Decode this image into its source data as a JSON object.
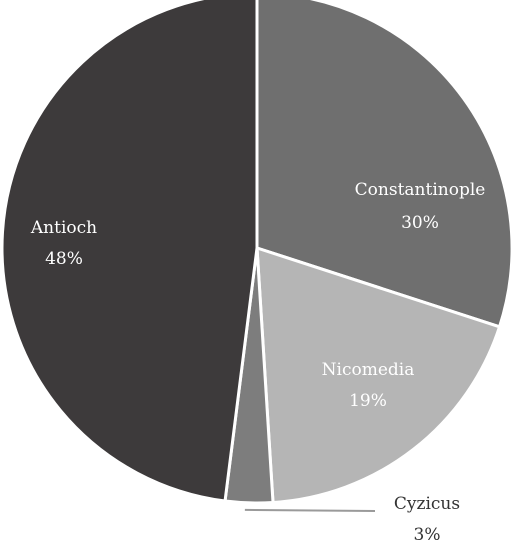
{
  "chart_data": {
    "type": "pie",
    "slices": [
      {
        "label": "Constantinople",
        "value_label": "30%",
        "value": 30,
        "color": "#6f6f6f",
        "text_color": "#ffffff"
      },
      {
        "label": "Nicomedia",
        "value_label": "19%",
        "value": 19,
        "color": "#b5b5b5",
        "text_color": "#ffffff"
      },
      {
        "label": "Cyzicus",
        "value_label": "3%",
        "value": 3,
        "color": "#7d7d7d",
        "text_color": "#333333"
      },
      {
        "label": "Antioch",
        "value_label": "48%",
        "value": 48,
        "color": "#3d3a3b",
        "text_color": "#ffffff"
      }
    ],
    "start_angle_deg": 0,
    "direction": "clockwise",
    "border_color": "#ffffff",
    "leader_line_color": "#9a9a9a"
  }
}
